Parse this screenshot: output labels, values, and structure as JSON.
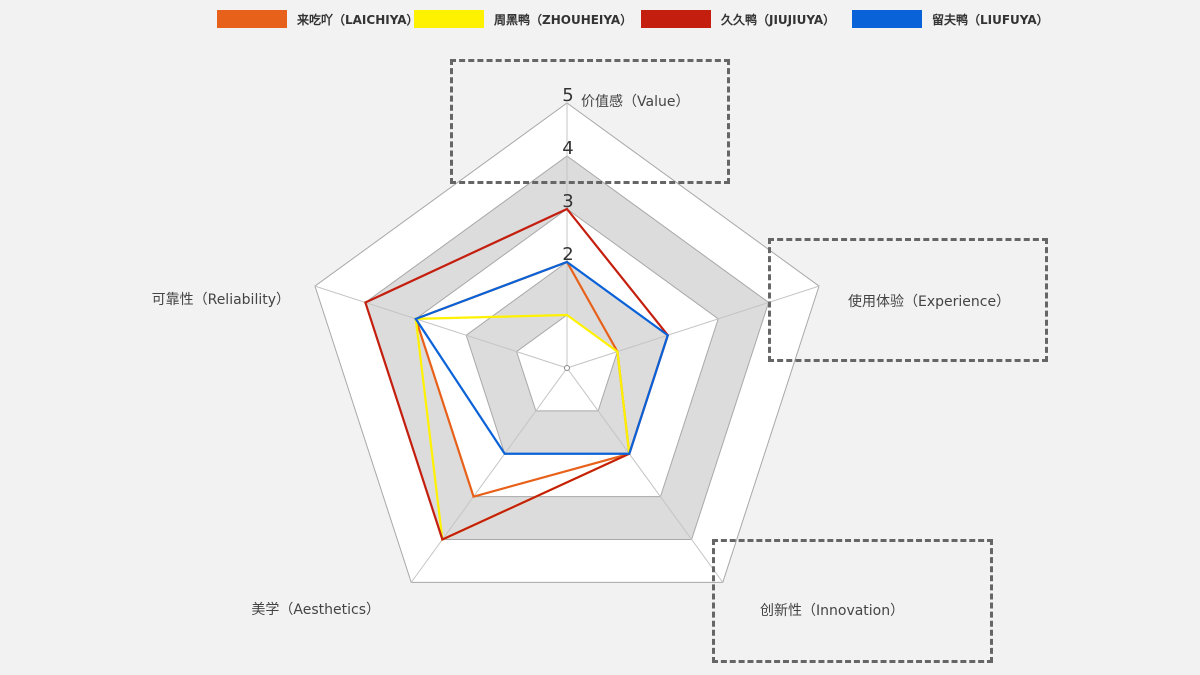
{
  "chart_data": {
    "type": "radar",
    "axes": [
      "价值感（Value）",
      "使用体验（Experience）",
      "创新性（Innovation）",
      "美学（Aesthetics）",
      "可靠性（Reliability）"
    ],
    "range": [
      0,
      5
    ],
    "tick_labels": [
      "2",
      "3",
      "4",
      "5"
    ],
    "ring_fills": [
      "#ffffff",
      "#dcdcdc",
      "#ffffff",
      "#dcdcdc",
      "#ffffff"
    ],
    "legend_position": "top",
    "series": [
      {
        "name": "来吃吖（LAICHIYA）",
        "color": "#e8611a",
        "values": [
          2,
          1,
          2,
          3,
          3
        ]
      },
      {
        "name": "周黑鸭（ZHOUHEIYA）",
        "color": "#fff200",
        "values": [
          1,
          1,
          2,
          4,
          3
        ]
      },
      {
        "name": "久久鸭（JIUJIUYA）",
        "color": "#c41e0e",
        "values": [
          3,
          2,
          2,
          4,
          4
        ]
      },
      {
        "name": "留夫鸭（LIUFUYA）",
        "color": "#0a62d8",
        "values": [
          2,
          2,
          2,
          2,
          3
        ]
      }
    ]
  }
}
